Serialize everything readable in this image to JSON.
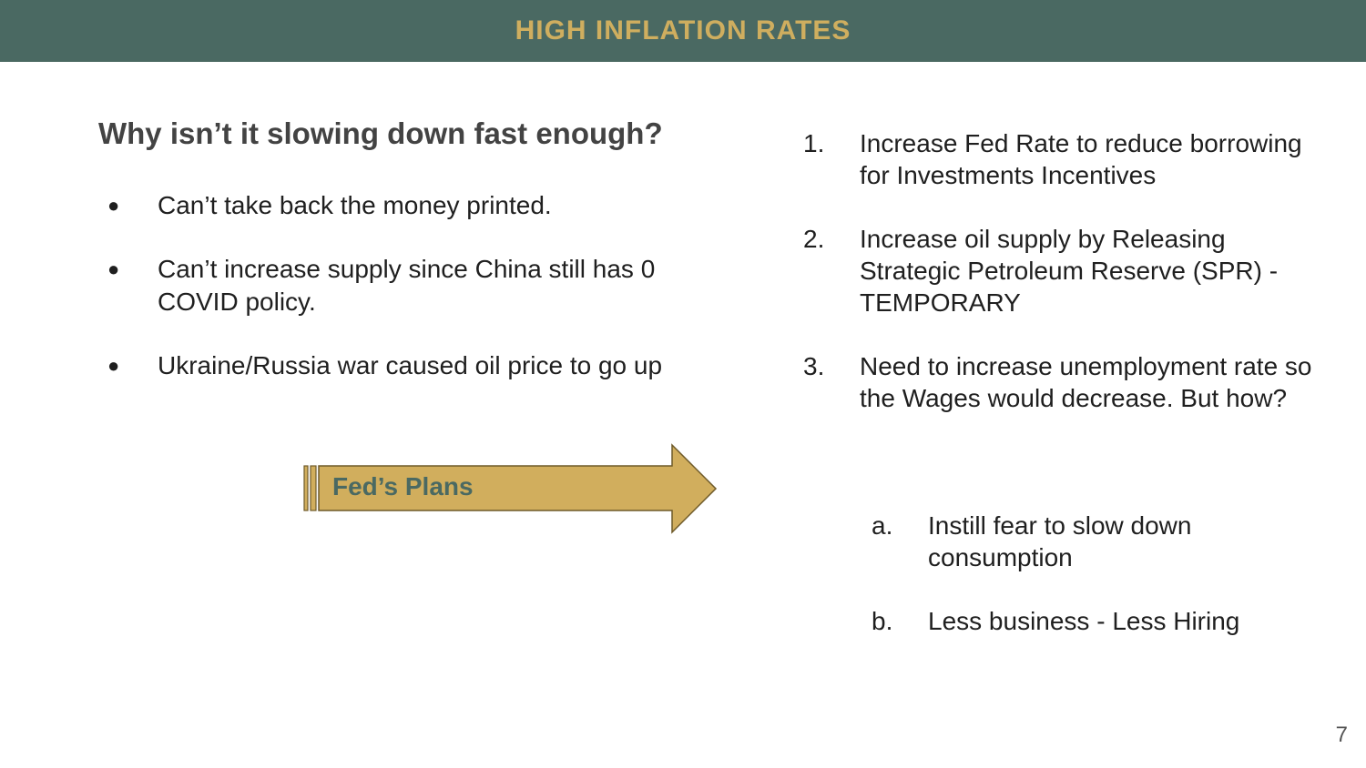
{
  "header": {
    "title": "HIGH INFLATION RATES"
  },
  "left": {
    "question": "Why isn’t it slowing down fast enough?",
    "bullet_marker": "●",
    "bullets": [
      "Can’t take back the money printed.",
      "Can’t increase supply since China still has 0 COVID policy.",
      "Ukraine/Russia war caused oil price to go up"
    ]
  },
  "arrow": {
    "label": "Fed’s Plans"
  },
  "right": {
    "items": [
      {
        "marker": "1.",
        "text": "Increase Fed Rate to reduce borrowing for Investments Incentives"
      },
      {
        "marker": "2.",
        "text": "Increase oil supply by Releasing Strategic Petroleum Reserve (SPR) - TEMPORARY"
      },
      {
        "marker": "3.",
        "text": "Need to increase unemployment rate so the Wages would decrease. But how?"
      }
    ],
    "subitems": [
      {
        "marker": "a.",
        "text": "Instill fear to slow down consumption"
      },
      {
        "marker": "b.",
        "text": "Less business - Less Hiring"
      }
    ]
  },
  "footer": {
    "page_number": "7"
  },
  "colors": {
    "header_bg": "#4a6962",
    "accent_gold": "#cfae5f",
    "arrow_fill": "#d1ae5d",
    "arrow_stroke": "#6e5a2a"
  }
}
